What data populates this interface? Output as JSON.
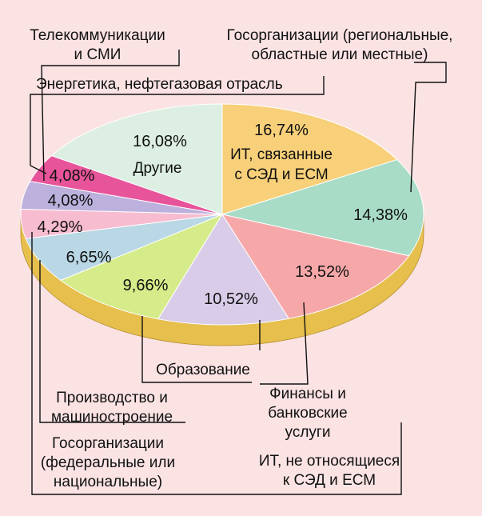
{
  "chart_data": {
    "type": "pie",
    "style": "3d-tilted",
    "categories": [
      "ИТ, связанные с СЭД и ЕСМ",
      "Госорганизации (региональные, областные или местные)",
      "Финансы и банковские услуги",
      "ИТ, не относящиеся к СЭД и ЕСМ",
      "Образование",
      "Производство и машиностроение",
      "Госорганизации (федеральные или национальные)",
      "Энергетика, нефтегазовая отрасль",
      "Телекоммуникации и СМИ",
      "Другие"
    ],
    "values": [
      16.74,
      14.38,
      13.52,
      10.52,
      9.66,
      6.65,
      4.29,
      4.08,
      4.08,
      16.08
    ],
    "value_labels": [
      "16,74%",
      "14,38%",
      "13,52%",
      "10,52%",
      "9,66%",
      "6,65%",
      "4,29%",
      "4,08%",
      "4,08%",
      "16,08%"
    ],
    "colors": [
      "#f8d07a",
      "#a8dcc6",
      "#f6a8a8",
      "#d8cce8",
      "#d6ec8a",
      "#b9d7e4",
      "#f7bcd0",
      "#bcb0dc",
      "#e8549a",
      "#dcefe2"
    ],
    "side_color": "#e6bf4d",
    "start_angle_deg": 90,
    "direction": "clockwise"
  },
  "slice_text": {
    "it_sed_line1": "ИТ, связанные",
    "it_sed_line2": "с СЭД и ЕСМ",
    "other": "Другие"
  },
  "callouts": {
    "telecom_line1": "Телекоммуникации",
    "telecom_line2": "и СМИ",
    "energy": "Энергетика, нефтегазовая отрасль",
    "gov_regional_line1": "Госорганизации (региональные,",
    "gov_regional_line2": "областные или местные)",
    "education": "Образование",
    "manufacturing_line1": "Производство и",
    "manufacturing_line2": "машиностроение",
    "gov_federal_line1": "Госорганизации",
    "gov_federal_line2": "(федеральные или",
    "gov_federal_line3": "национальные)",
    "finance_line1": "Финансы и",
    "finance_line2": "банковские",
    "finance_line3": "услуги",
    "it_other_line1": "ИТ, не относящиеся",
    "it_other_line2": "к СЭД и ЕСМ"
  }
}
